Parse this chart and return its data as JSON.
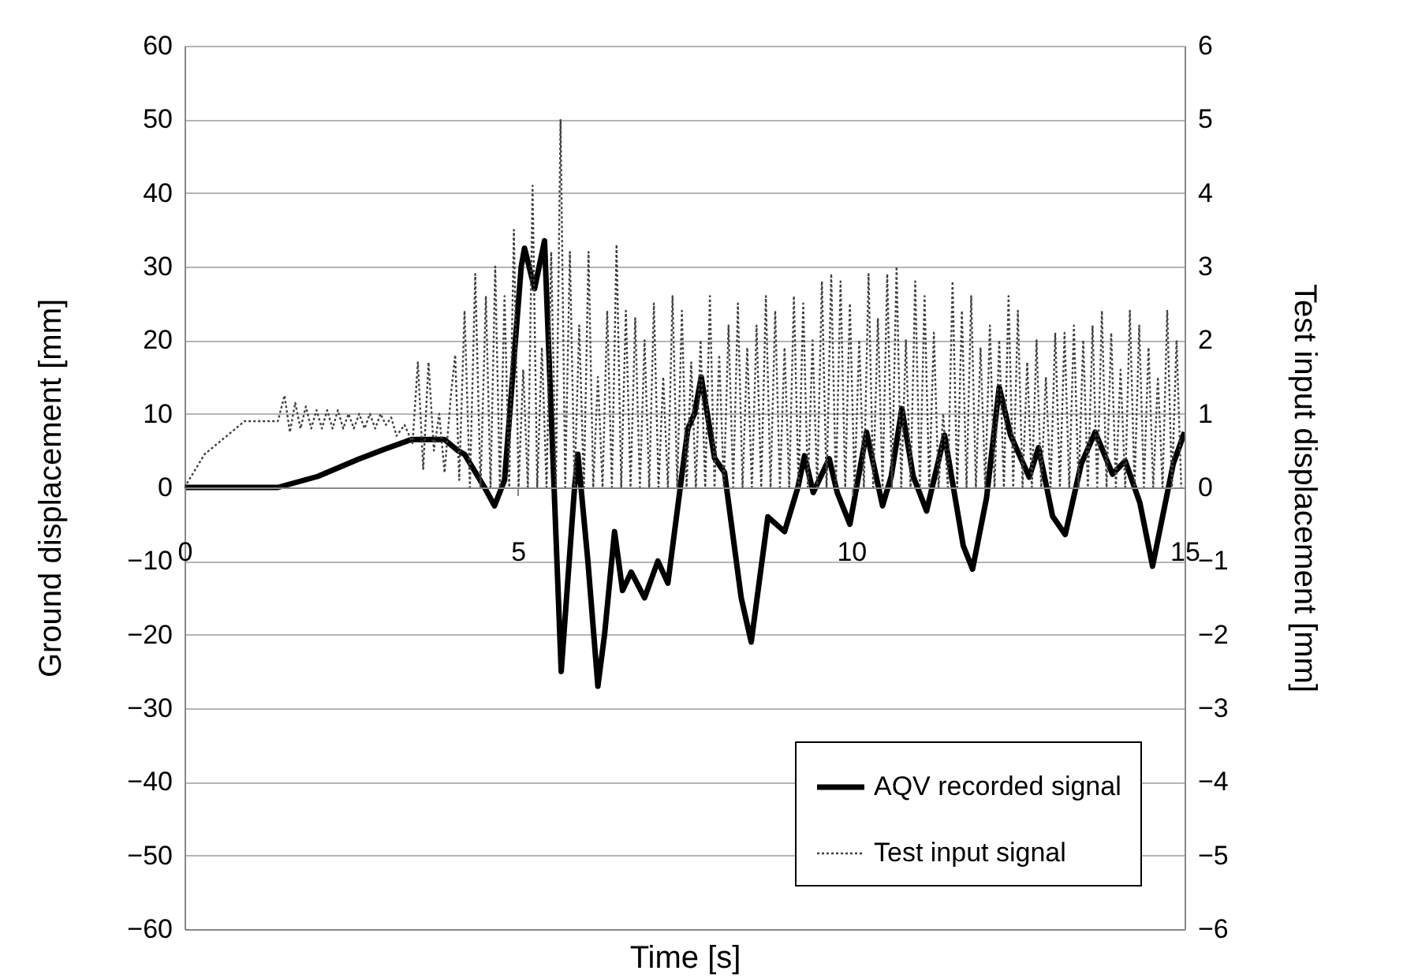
{
  "chart_data": {
    "type": "line",
    "xlabel": "Time [s]",
    "ylabel": "Ground displacement [mm]",
    "y2label": "Test input displacement [mm]",
    "xlim": [
      0,
      15
    ],
    "xticks": [
      0,
      5,
      10,
      15
    ],
    "ylim": [
      -60,
      60
    ],
    "yticks": [
      -60,
      -50,
      -40,
      -30,
      -20,
      -10,
      0,
      10,
      20,
      30,
      40,
      50,
      60
    ],
    "y2lim": [
      -6,
      6
    ],
    "y2ticks": [
      -6,
      -5,
      -4,
      -3,
      -2,
      -1,
      0,
      1,
      2,
      3,
      4,
      5,
      6
    ],
    "grid": "y",
    "legend": "bottom right",
    "series": [
      {
        "name": "AQV recorded signal",
        "color": "#000000",
        "line_style": "solid",
        "x": [
          0,
          1.4,
          2.0,
          2.6,
          3.0,
          3.4,
          3.9,
          4.1,
          4.2,
          4.5,
          4.65,
          4.8,
          5.05,
          5.1,
          5.25,
          5.4,
          5.5,
          5.65,
          5.85,
          5.9,
          6.05,
          6.2,
          6.3,
          6.45,
          6.57,
          6.7,
          6.9,
          7.1,
          7.25,
          7.55,
          7.65,
          7.75,
          7.95,
          8.1,
          8.35,
          8.5,
          8.75,
          9.0,
          9.2,
          9.3,
          9.43,
          9.67,
          9.79,
          9.98,
          10.23,
          10.47,
          10.6,
          10.76,
          10.93,
          11.13,
          11.4,
          11.68,
          11.82,
          12.03,
          12.22,
          12.39,
          12.67,
          12.81,
          13.02,
          13.21,
          13.45,
          13.66,
          13.92,
          14.11,
          14.33,
          14.52,
          14.83,
          15
        ],
        "values": [
          0,
          0,
          1.5,
          3.8,
          5.2,
          6.5,
          6.5,
          5,
          4.5,
          0,
          -2.5,
          1,
          30,
          32.5,
          27,
          33.5,
          10,
          -25,
          0,
          4.5,
          -10,
          -27,
          -20,
          -6,
          -14,
          -11.5,
          -15,
          -10,
          -13,
          8,
          10,
          15,
          4,
          2,
          -15,
          -21,
          -4,
          -6,
          0,
          4.3,
          -0.7,
          3.9,
          -0.7,
          -5,
          7.5,
          -2.5,
          1.5,
          10.7,
          1.5,
          -3.2,
          7.1,
          -7.9,
          -11.1,
          -1.4,
          13.6,
          7.1,
          1.4,
          5.4,
          -3.9,
          -6.4,
          3.2,
          7.5,
          1.8,
          3.6,
          -2.1,
          -10.7,
          3.2,
          7.5
        ]
      },
      {
        "name": "Test input signal",
        "color": "#404040",
        "line_style": "dotted",
        "axis": "y2",
        "x": [
          0,
          0.3,
          0.9,
          1.4,
          1.5,
          1.58,
          1.66,
          1.74,
          1.82,
          1.9,
          1.98,
          2.06,
          2.14,
          2.22,
          2.3,
          2.38,
          2.46,
          2.54,
          2.62,
          2.7,
          2.78,
          2.86,
          2.94,
          3.02,
          3.1,
          3.18,
          3.3,
          3.42,
          3.5,
          3.58,
          3.66,
          3.74,
          3.82,
          3.9,
          4.0,
          4.06,
          4.12,
          4.2,
          4.28,
          4.36,
          4.44,
          4.52,
          4.59,
          4.66,
          4.73,
          4.8,
          4.87,
          4.94,
          5.01,
          5.08,
          5.15,
          5.22,
          5.29,
          5.36,
          5.43,
          5.5,
          5.57,
          5.64,
          5.71,
          5.78,
          5.85,
          5.92,
          5.99,
          6.06,
          6.13,
          6.2,
          6.27,
          6.34,
          6.41,
          6.48,
          6.55,
          6.62,
          6.69,
          6.76,
          6.83,
          6.9,
          6.97,
          7.04,
          7.11,
          7.18,
          7.25,
          7.32,
          7.39,
          7.46,
          7.53,
          7.6,
          7.67,
          7.74,
          7.81,
          7.88,
          7.95,
          8.02,
          8.09,
          8.16,
          8.23,
          8.3,
          8.37,
          8.44,
          8.51,
          8.58,
          8.65,
          8.72,
          8.79,
          8.86,
          8.93,
          9.0,
          9.07,
          9.14,
          9.21,
          9.28,
          9.35,
          9.42,
          9.49,
          9.56,
          9.63,
          9.7,
          9.77,
          9.84,
          9.91,
          9.98,
          10.05,
          10.12,
          10.19,
          10.26,
          10.33,
          10.4,
          10.47,
          10.54,
          10.61,
          10.68,
          10.75,
          10.82,
          10.89,
          10.96,
          11.03,
          11.1,
          11.17,
          11.24,
          11.31,
          11.38,
          11.45,
          11.52,
          11.59,
          11.66,
          11.73,
          11.8,
          11.87,
          11.94,
          12.01,
          12.08,
          12.15,
          12.22,
          12.29,
          12.36,
          12.43,
          12.5,
          12.57,
          12.64,
          12.71,
          12.78,
          12.85,
          12.92,
          12.99,
          13.06,
          13.13,
          13.2,
          13.27,
          13.34,
          13.41,
          13.48,
          13.55,
          13.62,
          13.69,
          13.76,
          13.83,
          13.9,
          13.97,
          14.04,
          14.11,
          14.18,
          14.25,
          14.32,
          14.39,
          14.46,
          14.53,
          14.6,
          14.67,
          14.74,
          14.81,
          14.88,
          14.95
        ],
        "values": [
          0,
          0.45,
          0.9,
          0.9,
          1.25,
          0.75,
          1.15,
          0.8,
          1.1,
          0.8,
          1.05,
          0.8,
          1.05,
          0.8,
          1.05,
          0.8,
          1.0,
          0.8,
          1.0,
          0.8,
          1.0,
          0.8,
          1.0,
          0.85,
          0.95,
          0.7,
          0.85,
          0.6,
          1.7,
          0.25,
          1.7,
          0.5,
          1.0,
          0.2,
          1.3,
          1.8,
          0.1,
          2.4,
          0,
          2.9,
          0,
          2.6,
          0,
          3.0,
          0,
          2.6,
          0,
          3.5,
          0,
          1.6,
          0,
          4.1,
          0,
          1.9,
          0,
          3.2,
          0,
          5.0,
          0,
          3.2,
          0,
          2.2,
          0,
          3.2,
          0,
          1.5,
          0,
          2.4,
          0,
          3.3,
          0,
          2.4,
          0,
          2.3,
          0,
          2.0,
          0,
          2.5,
          0,
          1.5,
          0,
          2.6,
          0,
          2.4,
          0,
          1.7,
          0,
          2.0,
          0,
          2.6,
          0,
          1.8,
          0,
          2.2,
          0,
          2.5,
          0,
          1.9,
          0,
          2.2,
          0,
          2.6,
          0,
          2.4,
          0,
          1.9,
          0,
          2.6,
          0,
          2.5,
          0,
          2.0,
          0,
          2.8,
          0,
          2.9,
          0,
          2.8,
          0,
          2.5,
          0,
          2.0,
          0,
          2.9,
          0,
          2.3,
          0,
          2.9,
          0,
          3.0,
          0,
          2.0,
          0,
          2.8,
          0,
          2.6,
          0,
          2.1,
          0,
          1.0,
          0,
          2.8,
          0,
          2.4,
          0,
          2.6,
          0,
          1.9,
          0,
          2.2,
          0,
          2.0,
          0,
          2.6,
          0,
          2.4,
          0,
          1.7,
          0,
          2.0,
          0,
          1.5,
          0,
          2.1,
          0,
          2.1,
          0,
          2.2,
          0,
          2.0,
          0,
          2.2,
          0,
          2.4,
          0,
          2.1,
          0,
          1.6,
          0,
          2.4,
          0,
          2.2,
          0,
          1.9,
          0,
          1.5,
          0,
          2.4,
          0,
          2.0,
          0
        ]
      }
    ]
  }
}
